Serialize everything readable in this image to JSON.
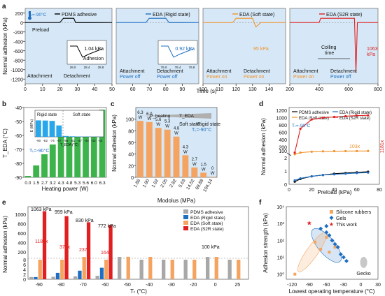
{
  "panel_labels": [
    "a",
    "b",
    "c",
    "d",
    "e",
    "f"
  ],
  "colors": {
    "panel_bg": "#d6e8f7",
    "pdms": "#000000",
    "rigid": "#1f6fc1",
    "soft": "#f0932b",
    "s2r": "#e02020",
    "green": "#3cb44b",
    "gray": "#a8a8a8",
    "blue_bar": "#2aa7ea",
    "orange_bar": "#f4a460"
  },
  "chart_data": [
    {
      "id": "a",
      "type": "line",
      "xlabel": "Time (s)",
      "ylabel": "Normal adhesion (kPa)",
      "ylim": [
        -1300,
        300
      ],
      "yticks": [
        200,
        0,
        -200,
        -400,
        -600,
        -800,
        -1000,
        -1200
      ],
      "subpanels": [
        {
          "legend": "PDMS adhesive",
          "color": "#000000",
          "xlim": [
            0,
            50
          ],
          "xticks": [
            0,
            10,
            20,
            30,
            40,
            50
          ],
          "series": {
            "x": [
              0,
              20,
              22,
              28,
              29,
              30,
              50
            ],
            "y": [
              0,
              0,
              90,
              90,
              0,
              -1.04,
              0
            ]
          },
          "labels": [
            "Tₜ=-90°C",
            "Preload",
            "Attachment",
            "Detachment"
          ],
          "inset": {
            "label": "1.04 kPa",
            "sub": "Adhesion",
            "ticks": [
              "28.0",
              "28.4",
              "28.8"
            ]
          }
        },
        {
          "legend": "EDA (Rigid state)",
          "color": "#1f6fc1",
          "xlim": [
            50,
            100
          ],
          "xticks": [
            60,
            70,
            80,
            90
          ],
          "series": {
            "x": [
              50,
              68,
              70,
              80,
              82,
              100
            ],
            "y": [
              0,
              0,
              90,
              90,
              -0.92,
              0
            ]
          },
          "labels": [
            "Attachment",
            "Power off",
            "Detachment",
            "Power off"
          ],
          "inset": {
            "label": "0.92 kPa",
            "ticks": [
              "76.0",
              "76.4",
              "76.8"
            ]
          }
        },
        {
          "legend": "EDA (Soft state)",
          "color": "#f0932b",
          "xlim": [
            100,
            150
          ],
          "xticks": [
            100,
            110,
            120,
            130,
            140
          ],
          "series": {
            "x": [
              100,
              118,
              120,
              130,
              132,
              135,
              150
            ],
            "y": [
              0,
              0,
              90,
              90,
              -95,
              0,
              0
            ]
          },
          "labels": [
            "Attachment",
            "Power on",
            "Detachment",
            "Power on"
          ],
          "annotation": "95 kPa"
        },
        {
          "legend": "EDA (S2R state)",
          "color": "#e02020",
          "xlim": [
            200,
            800
          ],
          "xticks": [
            200,
            400,
            600,
            800
          ],
          "series": {
            "x": [
              200,
              400,
              410,
              600,
              640,
              650,
              660,
              700,
              800
            ],
            "y": [
              0,
              0,
              90,
              90,
              90,
              -1063,
              0,
              0,
              0
            ]
          },
          "labels": [
            "Attachment",
            "Power on",
            "Detachment",
            "Power off"
          ],
          "annotations": [
            "Colling time",
            "1063 kPa"
          ]
        }
      ]
    },
    {
      "id": "b",
      "type": "bar",
      "xlabel": "Heating power (W)",
      "ylabel": "T_EDA (°C)",
      "categories": [
        "0.0",
        "1.5",
        "2.7",
        "3.2",
        "4.3",
        "4.8",
        "5.3",
        "5.6",
        "6.0",
        "6.3"
      ],
      "values": [
        -90,
        -82,
        -74,
        -67,
        -58,
        -51,
        -47,
        -44,
        -43,
        -42
      ],
      "ylim": [
        -90,
        -40
      ],
      "yticks": [
        -90,
        -80,
        -70,
        -60,
        -50,
        -40
      ],
      "annotation": "Tₜ=-90°C",
      "inset": {
        "ylabel": "E (MPa)",
        "xlabel": "T_EDA (°C)",
        "labels": [
          "Rigid state",
          "Soft state"
        ],
        "categories": [
          "-90",
          "-82",
          "-74",
          "-67",
          "-58",
          "-51",
          "-47",
          "-44",
          "-43",
          "-42"
        ],
        "values": [
          101,
          100,
          98,
          70,
          5,
          3,
          2,
          1.5,
          1,
          0.8
        ],
        "ylim": [
          0,
          120
        ],
        "yticks": [
          0,
          100
        ]
      }
    },
    {
      "id": "c",
      "type": "bar",
      "xlabel": "Modolus (MPa)",
      "ylabel": "Normal adhesion (kPa)",
      "categories": [
        "1.86",
        "1.90",
        "1.92",
        "2.05",
        "2.82",
        "5.63",
        "14.52",
        "69.88",
        "104.14"
      ],
      "values": [
        97,
        95,
        85,
        82,
        70,
        38,
        17,
        8,
        1
      ],
      "bar_labels": [
        "6.3 W",
        "6.0 W",
        "5.6 W",
        "5.3 W",
        "4.8 W",
        "4.3 W",
        "2.7 W",
        "1.5 W",
        "0 W"
      ],
      "ylim": [
        0,
        120
      ],
      "yticks": [
        0,
        20,
        40,
        60,
        80,
        100
      ],
      "annotations": [
        "P_heating",
        "T_EDA",
        "Soft state",
        "Rigid state",
        "Tₜ=-90°C"
      ]
    },
    {
      "id": "d",
      "type": "line",
      "xlabel": "Preload (kPa)",
      "ylabel": "Normal adhesion (kPa)",
      "x": [
        5,
        10,
        20,
        30,
        40,
        50,
        60,
        70
      ],
      "series": [
        {
          "name": "PDMS adhesive",
          "color": "#000000",
          "y": [
            0.2,
            0.4,
            0.6,
            0.7,
            0.8,
            0.85,
            0.9,
            0.95
          ]
        },
        {
          "name": "EDA (Rigid state)",
          "color": "#1f6fc1",
          "y": [
            0.3,
            0.45,
            0.6,
            0.7,
            0.75,
            0.8,
            0.85,
            0.88
          ]
        },
        {
          "name": "EDA (Soft state)",
          "color": "#f0932b",
          "y": [
            6,
            50,
            75,
            85,
            90,
            92,
            94,
            95
          ]
        },
        {
          "name": "EDA (S2R state)",
          "color": "#e02020",
          "y": [
            50,
            700,
            950,
            1000,
            1020,
            1040,
            1055,
            1063
          ]
        }
      ],
      "annotations": [
        "Tₜ=-90°C",
        "103x",
        "1181x"
      ],
      "ylim": [
        0,
        1200
      ],
      "yticks": [
        "0",
        "1",
        "2",
        "100",
        "200",
        "400",
        "600",
        "800",
        "1000",
        "1200"
      ],
      "xticks": [
        0,
        20,
        40,
        60,
        80
      ]
    },
    {
      "id": "e",
      "type": "bar",
      "xlabel": "Tₜ (°C)",
      "ylabel": "Normal adhesion (kPa)",
      "categories": [
        "-90",
        "-80",
        "-70",
        "-60",
        "-50",
        "-40",
        "-30",
        "-20",
        "0",
        "25"
      ],
      "series": [
        {
          "name": "PDMS adhesive",
          "color": "#a8a8a8",
          "values": [
            0.9,
            1.0,
            1.2,
            1.4,
            100,
            98,
            97,
            95,
            100,
            96
          ]
        },
        {
          "name": "EDA (Rigid state)",
          "color": "#1f6fc1",
          "values": [
            0.9,
            2.6,
            3.5,
            4.7,
            null,
            null,
            null,
            null,
            null,
            null
          ]
        },
        {
          "name": "EDA (Soft state)",
          "color": "#f4a460",
          "values": [
            95,
            98,
            100,
            98,
            102,
            100,
            98,
            96,
            100,
            98
          ]
        },
        {
          "name": "EDA (S2R state)",
          "color": "#e02020",
          "values": [
            1063,
            959,
            830,
            772,
            null,
            null,
            null,
            null,
            null,
            null
          ]
        }
      ],
      "annotations": [
        "1063 kPa",
        "959 kPa",
        "830 kPa",
        "772 kPa",
        "1181x",
        "370x",
        "237x",
        "164x",
        "100 kPa"
      ],
      "yticks": [
        "0",
        "2",
        "4",
        "6",
        "8",
        "200",
        "400",
        "600",
        "800",
        "1000"
      ]
    },
    {
      "id": "f",
      "type": "scatter",
      "xlabel": "Lowest operating temperature (°C)",
      "ylabel": "Adhesion strength (kPa)",
      "xlim": [
        -130,
        30
      ],
      "ylim_log": [
        0.5,
        10000
      ],
      "xticks": [
        -120,
        -90,
        -60,
        -30,
        0,
        30
      ],
      "yticks": [
        "10⁰",
        "10¹",
        "10²",
        "10³",
        "10⁴"
      ],
      "series": [
        {
          "name": "Silicone rubbers",
          "color": "#f4a460",
          "points": [
            [
              -115,
              1
            ],
            [
              -80,
              80
            ],
            [
              -70,
              30
            ],
            [
              -60,
              150
            ],
            [
              -55,
              20
            ],
            [
              -45,
              40
            ]
          ]
        },
        {
          "name": "Gels",
          "color": "#1f6fc1",
          "points": [
            [
              -70,
              500
            ],
            [
              -60,
              300
            ],
            [
              -55,
              200
            ],
            [
              -50,
              100
            ],
            [
              -45,
              60
            ],
            [
              -40,
              40
            ],
            [
              -35,
              15
            ],
            [
              -30,
              10
            ],
            [
              -25,
              6
            ],
            [
              -60,
              700
            ]
          ]
        },
        {
          "name": "This work",
          "color": "#e02020",
          "points": [
            [
              -90,
              1063
            ]
          ]
        }
      ],
      "annotations": [
        "Gecko"
      ]
    }
  ]
}
